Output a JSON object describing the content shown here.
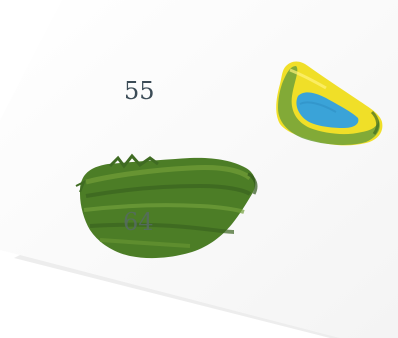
{
  "labels": {
    "top": "55",
    "bottom": "64"
  },
  "colors": {
    "paper": "#fafafa",
    "paper_shadow": "#eeeeee",
    "green_dark": "#3f6b22",
    "green_mid": "#5a8a2a",
    "green_light": "#7aa33a",
    "yellow": "#f2e22a",
    "blue": "#3aa3d8",
    "text": "#3b4b56"
  }
}
